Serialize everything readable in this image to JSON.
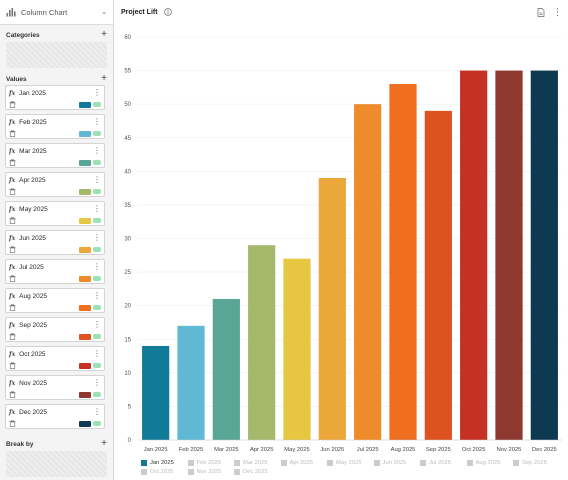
{
  "left_panel": {
    "chart_type": "Column Chart",
    "categories_label": "Categories",
    "values_label": "Values",
    "break_by_label": "Break by",
    "value_items": [
      {
        "label": "Jan 2025",
        "color": "#127a99"
      },
      {
        "label": "Feb 2025",
        "color": "#5fb9d4"
      },
      {
        "label": "Mar 2025",
        "color": "#5aa694"
      },
      {
        "label": "Apr 2025",
        "color": "#a4b96c"
      },
      {
        "label": "May 2025",
        "color": "#e7c641"
      },
      {
        "label": "Jun 2025",
        "color": "#eca73a"
      },
      {
        "label": "Jul 2025",
        "color": "#ee8c2c"
      },
      {
        "label": "Aug 2025",
        "color": "#f06e20"
      },
      {
        "label": "Sep 2025",
        "color": "#dd5221"
      },
      {
        "label": "Oct 2025",
        "color": "#c53122"
      },
      {
        "label": "Nov 2025",
        "color": "#8e382f"
      },
      {
        "label": "Dec 2025",
        "color": "#0d3951"
      }
    ]
  },
  "header": {
    "title": "Project Lift"
  },
  "chart_data": {
    "type": "bar",
    "categories": [
      "Jan 2025",
      "Feb 2025",
      "Mar 2025",
      "Apr 2025",
      "May 2025",
      "Jun 2025",
      "Jul 2025",
      "Aug 2025",
      "Sep 2025",
      "Oct 2025",
      "Nov 2025",
      "Dec 2025"
    ],
    "values": [
      14,
      17,
      21,
      29,
      27,
      39,
      50,
      53,
      49,
      55,
      55,
      55
    ],
    "colors": [
      "#127a99",
      "#5fb9d4",
      "#5aa694",
      "#a4b96c",
      "#e7c641",
      "#eca73a",
      "#ee8c2c",
      "#f06e20",
      "#dd5221",
      "#c53122",
      "#8e382f",
      "#0d3951"
    ],
    "title": "Project Lift",
    "xlabel": "",
    "ylabel": "",
    "ylim": [
      0,
      60
    ],
    "yticks": [
      0,
      5,
      10,
      15,
      20,
      25,
      30,
      35,
      40,
      45,
      50,
      55,
      60
    ],
    "grid": true,
    "legend_placement": "bottom",
    "legend_active": [
      "Jan 2025"
    ]
  }
}
